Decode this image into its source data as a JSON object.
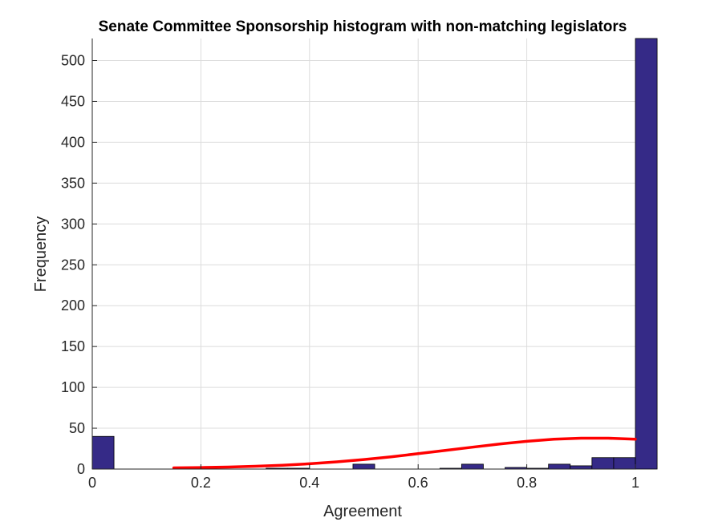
{
  "chart_data": {
    "type": "bar",
    "title": "Senate Committee Sponsorship histogram with non-matching legislators",
    "xlabel": "Agreement",
    "ylabel": "Frequency",
    "xlim": [
      0,
      1
    ],
    "ylim": [
      0,
      527
    ],
    "grid": true,
    "xticks": [
      0,
      0.2,
      0.4,
      0.6,
      0.8,
      1
    ],
    "xtick_labels": [
      "0",
      "0.2",
      "0.4",
      "0.6",
      "0.8",
      "1"
    ],
    "yticks": [
      0,
      50,
      100,
      150,
      200,
      250,
      300,
      350,
      400,
      450,
      500
    ],
    "ytick_labels": [
      "0",
      "50",
      "100",
      "150",
      "200",
      "250",
      "300",
      "350",
      "400",
      "450",
      "500"
    ],
    "bin_width": 0.04,
    "bins": [
      {
        "start": 0.0,
        "end": 0.04,
        "count": 40
      },
      {
        "start": 0.32,
        "end": 0.36,
        "count": 1
      },
      {
        "start": 0.36,
        "end": 0.4,
        "count": 1
      },
      {
        "start": 0.48,
        "end": 0.52,
        "count": 6
      },
      {
        "start": 0.64,
        "end": 0.68,
        "count": 1
      },
      {
        "start": 0.68,
        "end": 0.72,
        "count": 6
      },
      {
        "start": 0.76,
        "end": 0.8,
        "count": 2
      },
      {
        "start": 0.8,
        "end": 0.84,
        "count": 1
      },
      {
        "start": 0.84,
        "end": 0.88,
        "count": 6
      },
      {
        "start": 0.88,
        "end": 0.92,
        "count": 4
      },
      {
        "start": 0.92,
        "end": 0.96,
        "count": 14
      },
      {
        "start": 0.96,
        "end": 1.0,
        "count": 14
      },
      {
        "start": 1.0,
        "end": 1.04,
        "count": 527
      }
    ],
    "fit_curve": {
      "type": "line",
      "x": [
        0.15,
        0.2,
        0.25,
        0.3,
        0.35,
        0.4,
        0.45,
        0.5,
        0.55,
        0.6,
        0.65,
        0.7,
        0.75,
        0.8,
        0.85,
        0.9,
        0.95,
        1.0
      ],
      "y": [
        1.5,
        1.9,
        2.5,
        3.4,
        4.7,
        6.5,
        8.8,
        11.7,
        15.0,
        18.8,
        22.8,
        26.8,
        30.7,
        34.0,
        36.5,
        37.8,
        37.8,
        36.5
      ]
    },
    "colors": {
      "bar_fill": "#352a87",
      "bar_edge": "#000000",
      "fit_line": "#ff0000",
      "grid": "#dcdcdc",
      "axis": "#262626"
    }
  }
}
